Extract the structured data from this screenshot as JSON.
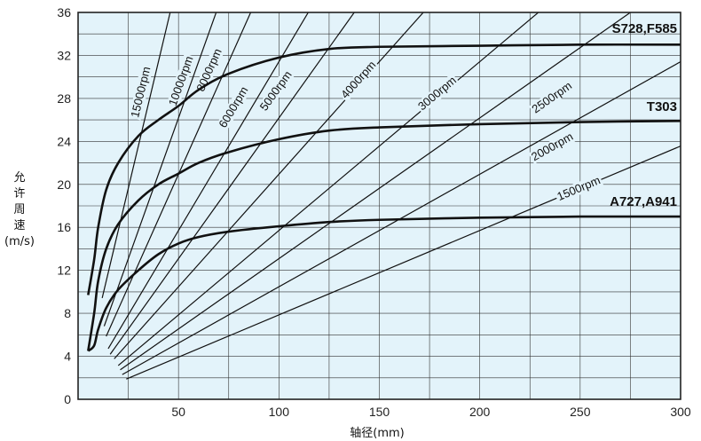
{
  "chart_data": {
    "type": "line",
    "xlabel": "轴径(mm)",
    "ylabel_lines": [
      "允",
      "许",
      "周",
      "速",
      "(m/s)"
    ],
    "xlim": [
      0,
      300
    ],
    "ylim": [
      0,
      36
    ],
    "x_ticks": [
      50,
      100,
      150,
      200,
      250,
      300
    ],
    "y_ticks": [
      0,
      4,
      8,
      12,
      16,
      20,
      24,
      28,
      32,
      36
    ],
    "grid": true,
    "background": "#e3f3fa",
    "series": [
      {
        "name": "S728,F585",
        "x": [
          5,
          8,
          10,
          14,
          20,
          30,
          40,
          50,
          60,
          75,
          100,
          125,
          150,
          200,
          250,
          300
        ],
        "y": [
          9.7,
          13,
          16,
          19.5,
          22,
          24.5,
          26,
          27.3,
          28.8,
          30.3,
          31.8,
          32.6,
          32.8,
          32.9,
          33,
          33
        ]
      },
      {
        "name": "T303",
        "x": [
          5,
          8,
          10,
          14,
          20,
          30,
          40,
          50,
          60,
          75,
          100,
          125,
          150,
          200,
          250,
          300
        ],
        "y": [
          4.5,
          8,
          11,
          14,
          16.3,
          18.5,
          20,
          21,
          22,
          23,
          24.2,
          25,
          25.3,
          25.6,
          25.8,
          25.9
        ]
      },
      {
        "name": "A727,A941",
        "x": [
          5,
          8,
          10,
          14,
          20,
          30,
          40,
          50,
          60,
          75,
          100,
          125,
          150,
          200,
          250,
          300
        ],
        "y": [
          4.5,
          5,
          6.5,
          8.5,
          10.2,
          12,
          13.5,
          14.5,
          15.1,
          15.6,
          16.1,
          16.5,
          16.7,
          16.9,
          17,
          17
        ]
      }
    ],
    "rpm_lines": [
      {
        "label": "15000rpm",
        "rpm": 15000
      },
      {
        "label": "10000rpm",
        "rpm": 10000
      },
      {
        "label": "8000rpm",
        "rpm": 8000
      },
      {
        "label": "6000rpm",
        "rpm": 6000
      },
      {
        "label": "5000rpm",
        "rpm": 5000
      },
      {
        "label": "4000rpm",
        "rpm": 4000
      },
      {
        "label": "3000rpm",
        "rpm": 3000
      },
      {
        "label": "2500rpm",
        "rpm": 2500
      },
      {
        "label": "2000rpm",
        "rpm": 2000
      },
      {
        "label": "1500rpm",
        "rpm": 1500
      }
    ]
  }
}
